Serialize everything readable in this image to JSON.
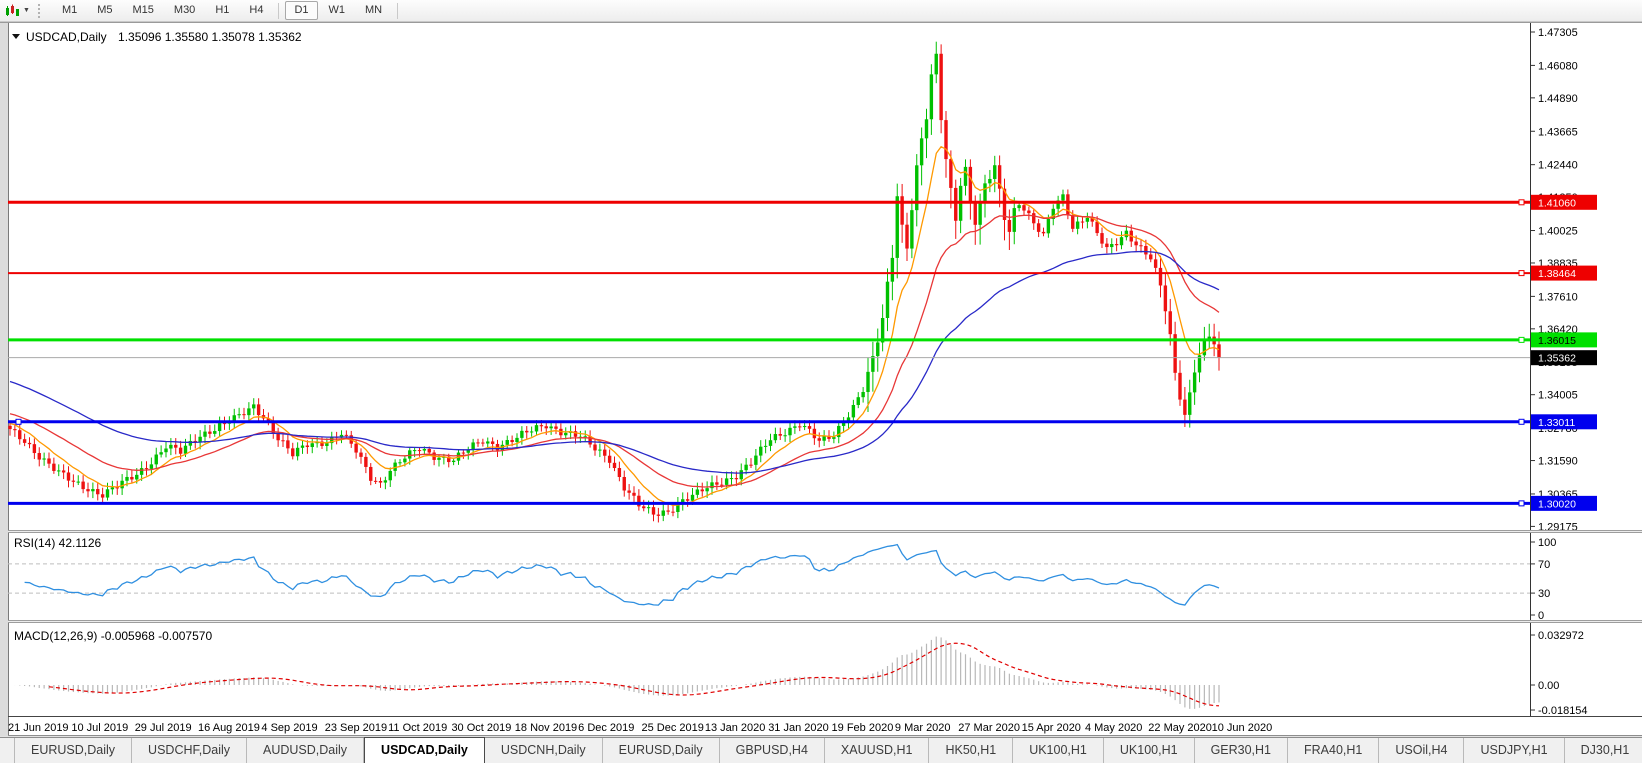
{
  "toolbar": {
    "timeframes": [
      {
        "label": "M1",
        "active": false
      },
      {
        "label": "M5",
        "active": false
      },
      {
        "label": "M15",
        "active": false
      },
      {
        "label": "M30",
        "active": false
      },
      {
        "label": "H1",
        "active": false
      },
      {
        "label": "H4",
        "active": false
      },
      {
        "label": "D1",
        "active": true
      },
      {
        "label": "W1",
        "active": false
      },
      {
        "label": "MN",
        "active": false
      }
    ],
    "dropdown_caret": "▼"
  },
  "chart": {
    "title_symbol": "USDCAD,Daily",
    "title_ohlc": "1.35096 1.35580 1.35078 1.35362",
    "price_axis_ticks": [
      "1.47305",
      "1.46080",
      "1.44890",
      "1.43665",
      "1.42440",
      "1.41250",
      "1.40025",
      "1.38835",
      "1.37610",
      "1.36420",
      "1.35195",
      "1.34005",
      "1.32780",
      "1.31590",
      "1.30365",
      "1.29175"
    ],
    "price_labels": [
      {
        "value": "1.41060",
        "bg": "#ee0000",
        "fg": "#ffffff"
      },
      {
        "value": "1.38464",
        "bg": "#ee0000",
        "fg": "#ffffff"
      },
      {
        "value": "1.36015",
        "bg": "#00e000",
        "fg": "#000000"
      },
      {
        "value": "1.35362",
        "bg": "#000000",
        "fg": "#ffffff"
      },
      {
        "value": "1.33011",
        "bg": "#0000ee",
        "fg": "#ffffff"
      },
      {
        "value": "1.30020",
        "bg": "#0000ee",
        "fg": "#ffffff"
      }
    ]
  },
  "rsi": {
    "label": "RSI(14) 42.1126",
    "axis": [
      "100",
      "70",
      "30",
      "0"
    ],
    "levels": [
      70,
      30
    ]
  },
  "macd": {
    "label": "MACD(12,26,9) -0.005968 -0.007570",
    "axis": [
      "0.032972",
      "0.00",
      "-0.018154"
    ]
  },
  "date_axis": [
    "21 Jun 2019",
    "10 Jul 2019",
    "29 Jul 2019",
    "16 Aug 2019",
    "4 Sep 2019",
    "23 Sep 2019",
    "11 Oct 2019",
    "30 Oct 2019",
    "18 Nov 2019",
    "6 Dec 2019",
    "25 Dec 2019",
    "13 Jan 2020",
    "31 Jan 2020",
    "19 Feb 2020",
    "9 Mar 2020",
    "27 Mar 2020",
    "15 Apr 2020",
    "4 May 2020",
    "22 May 2020",
    "10 Jun 2020"
  ],
  "tabs": {
    "items": [
      "EURUSD,Daily",
      "USDCHF,Daily",
      "AUDUSD,Daily",
      "USDCAD,Daily",
      "USDCNH,Daily",
      "EURUSD,Daily",
      "GBPUSD,H4",
      "XAUUSD,H1",
      "HK50,H1",
      "UK100,H1",
      "UK100,H1",
      "GER30,H1",
      "FRA40,H1",
      "USOil,H4",
      "USDJPY,H1",
      "DJ30,H1"
    ],
    "active_index": 3,
    "nav_left": "◄",
    "nav_right": "►"
  },
  "chart_data": {
    "type": "candlestick",
    "symbol": "USDCAD",
    "timeframe": "Daily",
    "ohlc_display": {
      "open": 1.35096,
      "high": 1.3558,
      "low": 1.35078,
      "close": 1.35362
    },
    "price_axis_range": [
      1.29175,
      1.47305
    ],
    "x_range_dates": [
      "21 Jun 2019",
      "19 Jun 2020"
    ],
    "bars_total": 249,
    "horizontal_levels": [
      {
        "price": 1.4106,
        "color": "#ee0000",
        "width": 3
      },
      {
        "price": 1.38464,
        "color": "#ee0000",
        "width": 2
      },
      {
        "price": 1.36015,
        "color": "#00e000",
        "width": 3
      },
      {
        "price": 1.35362,
        "color": "#aaaaaa",
        "width": 1,
        "role": "current-price"
      },
      {
        "price": 1.33011,
        "color": "#0000ee",
        "width": 3
      },
      {
        "price": 1.3002,
        "color": "#0000ee",
        "width": 3
      }
    ],
    "close_keyframes": [
      [
        0,
        1.3268
      ],
      [
        3,
        1.3232
      ],
      [
        6,
        1.3178
      ],
      [
        10,
        1.3112
      ],
      [
        13,
        1.3078
      ],
      [
        16,
        1.3058
      ],
      [
        19,
        1.3036
      ],
      [
        22,
        1.3062
      ],
      [
        26,
        1.3108
      ],
      [
        29,
        1.3158
      ],
      [
        32,
        1.3212
      ],
      [
        35,
        1.3188
      ],
      [
        39,
        1.3252
      ],
      [
        43,
        1.3288
      ],
      [
        47,
        1.3318
      ],
      [
        50,
        1.3358
      ],
      [
        52,
        1.3322
      ],
      [
        55,
        1.3242
      ],
      [
        58,
        1.3178
      ],
      [
        61,
        1.3218
      ],
      [
        65,
        1.3232
      ],
      [
        68,
        1.3258
      ],
      [
        71,
        1.3192
      ],
      [
        74,
        1.3098
      ],
      [
        76,
        1.3076
      ],
      [
        78,
        1.3128
      ],
      [
        81,
        1.3168
      ],
      [
        84,
        1.3202
      ],
      [
        87,
        1.3178
      ],
      [
        91,
        1.3162
      ],
      [
        94,
        1.3198
      ],
      [
        97,
        1.3232
      ],
      [
        100,
        1.3214
      ],
      [
        104,
        1.3242
      ],
      [
        107,
        1.3268
      ],
      [
        110,
        1.3292
      ],
      [
        113,
        1.3268
      ],
      [
        117,
        1.3244
      ],
      [
        120,
        1.3202
      ],
      [
        123,
        1.3168
      ],
      [
        126,
        1.3062
      ],
      [
        129,
        1.2992
      ],
      [
        132,
        1.2962
      ],
      [
        135,
        1.2976
      ],
      [
        138,
        1.3012
      ],
      [
        141,
        1.3036
      ],
      [
        143,
        1.3058
      ],
      [
        146,
        1.3084
      ],
      [
        149,
        1.3106
      ],
      [
        152,
        1.3148
      ],
      [
        156,
        1.3238
      ],
      [
        159,
        1.3268
      ],
      [
        162,
        1.3294
      ],
      [
        164,
        1.3262
      ],
      [
        166,
        1.3226
      ],
      [
        169,
        1.3254
      ],
      [
        171,
        1.3308
      ],
      [
        173,
        1.3358
      ],
      [
        175,
        1.3418
      ],
      [
        177,
        1.3518
      ],
      [
        179,
        1.3678
      ],
      [
        181,
        1.3918
      ],
      [
        182,
        1.4148
      ],
      [
        183,
        1.4018
      ],
      [
        184,
        1.3948
      ],
      [
        185,
        1.4098
      ],
      [
        186,
        1.4228
      ],
      [
        187,
        1.4328
      ],
      [
        188,
        1.4418
      ],
      [
        189,
        1.4558
      ],
      [
        190,
        1.4628
      ],
      [
        191,
        1.4418
      ],
      [
        192,
        1.4268
      ],
      [
        193,
        1.4148
      ],
      [
        194,
        1.4058
      ],
      [
        195,
        1.4188
      ],
      [
        196,
        1.4228
      ],
      [
        197,
        1.4108
      ],
      [
        198,
        1.4038
      ],
      [
        199,
        1.4088
      ],
      [
        200,
        1.4158
      ],
      [
        201,
        1.4198
      ],
      [
        202,
        1.4228
      ],
      [
        203,
        1.4138
      ],
      [
        204,
        1.4058
      ],
      [
        205,
        1.4008
      ],
      [
        206,
        1.4078
      ],
      [
        207,
        1.4108
      ],
      [
        208,
        1.4088
      ],
      [
        210,
        1.4028
      ],
      [
        212,
        1.3978
      ],
      [
        214,
        1.4088
      ],
      [
        216,
        1.4128
      ],
      [
        218,
        1.4018
      ],
      [
        221,
        1.4058
      ],
      [
        223,
        1.3988
      ],
      [
        225,
        1.3928
      ],
      [
        227,
        1.3958
      ],
      [
        229,
        1.3998
      ],
      [
        231,
        1.3958
      ],
      [
        234,
        1.3902
      ],
      [
        236,
        1.3798
      ],
      [
        238,
        1.3618
      ],
      [
        239,
        1.3478
      ],
      [
        240,
        1.3388
      ],
      [
        241,
        1.3328
      ],
      [
        242,
        1.3408
      ],
      [
        243,
        1.3488
      ],
      [
        244,
        1.3548
      ],
      [
        245,
        1.3598
      ],
      [
        246,
        1.3614
      ],
      [
        247,
        1.3586
      ],
      [
        248,
        1.35362
      ]
    ],
    "indicators": {
      "moving_averages": [
        {
          "color": "#ff9900",
          "period": 9,
          "seed": 1.33
        },
        {
          "color": "#e83737",
          "period": 26,
          "seed": 1.3335
        },
        {
          "color": "#2929c8",
          "period": 58,
          "seed": 1.3455
        }
      ],
      "rsi": {
        "period": 14,
        "last_value": 42.1126,
        "levels": [
          70,
          30
        ],
        "color": "#2f8fe0"
      },
      "macd": {
        "fast": 12,
        "slow": 26,
        "signal": 9,
        "last_value": -0.005968,
        "last_signal": -0.00757,
        "hist_color": "#b8b8b8",
        "signal_color": "#e00000",
        "y_axis_max": 0.032972,
        "y_axis_min": -0.018154
      }
    },
    "candle_up_color": "#00c000",
    "candle_down_color": "#ee1111"
  }
}
